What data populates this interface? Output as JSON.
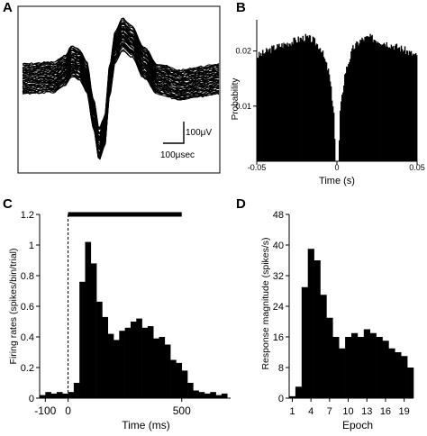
{
  "panels": {
    "A": "A",
    "B": "B",
    "C": "C",
    "D": "D"
  },
  "chart_data": [
    {
      "panel": "A",
      "type": "line",
      "title": "",
      "scale_bar_voltage": "100μV",
      "scale_bar_time": "100μsec",
      "series_description": "overlaid spike waveforms",
      "grid": false
    },
    {
      "panel": "B",
      "type": "bar",
      "xlabel": "Time (s)",
      "ylabel": "Probability",
      "xlim": [
        -0.05,
        0.05
      ],
      "ylim": [
        0,
        0.025
      ],
      "xticks": [
        "-0.05",
        "0",
        "0.05"
      ],
      "yticks": [
        "0.01",
        "0.02"
      ],
      "profile": {
        "x": [
          -0.05,
          -0.04,
          -0.03,
          -0.02,
          -0.015,
          -0.01,
          -0.005,
          -0.002,
          -0.001,
          0.001,
          0.002,
          0.005,
          0.01,
          0.015,
          0.02,
          0.03,
          0.04,
          0.05
        ],
        "y": [
          0.019,
          0.0205,
          0.0215,
          0.0225,
          0.022,
          0.0205,
          0.016,
          0.009,
          0.0,
          0.0,
          0.009,
          0.016,
          0.0205,
          0.022,
          0.0225,
          0.0215,
          0.0205,
          0.019
        ]
      }
    },
    {
      "panel": "C",
      "type": "bar",
      "xlabel": "Time (ms)",
      "ylabel": "Firing rates (spikes/bin/trial)",
      "xlim": [
        -125,
        715
      ],
      "ylim": [
        0,
        1.2
      ],
      "xticks": [
        "-100",
        "0",
        "500"
      ],
      "yticks": [
        "0",
        "0.2",
        "0.4",
        "0.6",
        "0.8",
        "1",
        "1.2"
      ],
      "stimulus_bar": [
        0,
        500
      ],
      "bin_width": 25,
      "bin_starts": [
        -125,
        -100,
        -75,
        -50,
        -25,
        0,
        25,
        50,
        75,
        100,
        125,
        150,
        175,
        200,
        225,
        250,
        275,
        300,
        325,
        350,
        375,
        400,
        425,
        450,
        475,
        500,
        525,
        550,
        575,
        600,
        625,
        650,
        675
      ],
      "values": [
        0.02,
        0.04,
        0.03,
        0.04,
        0.03,
        0.04,
        0.1,
        0.76,
        1.02,
        0.88,
        0.63,
        0.53,
        0.42,
        0.38,
        0.44,
        0.46,
        0.5,
        0.52,
        0.46,
        0.47,
        0.39,
        0.4,
        0.35,
        0.25,
        0.23,
        0.18,
        0.1,
        0.05,
        0.04,
        0.03,
        0.04,
        0.02,
        0.03
      ]
    },
    {
      "panel": "D",
      "type": "bar",
      "xlabel": "Epoch",
      "ylabel": "Response magnitude (spikes/s)",
      "xlim": [
        0.5,
        20.5
      ],
      "ylim": [
        0,
        48
      ],
      "xticks": [
        "1",
        "4",
        "7",
        "10",
        "13",
        "16",
        "19"
      ],
      "yticks": [
        "0",
        "8",
        "16",
        "24",
        "32",
        "40",
        "48"
      ],
      "epochs": [
        1,
        2,
        3,
        4,
        5,
        6,
        7,
        8,
        9,
        10,
        11,
        12,
        13,
        14,
        15,
        16,
        17,
        18,
        19,
        20
      ],
      "values": [
        0.5,
        3,
        29,
        39,
        36,
        27,
        21,
        16,
        13,
        16,
        17,
        16,
        18,
        17,
        16,
        15,
        13,
        12,
        11,
        8
      ]
    }
  ]
}
